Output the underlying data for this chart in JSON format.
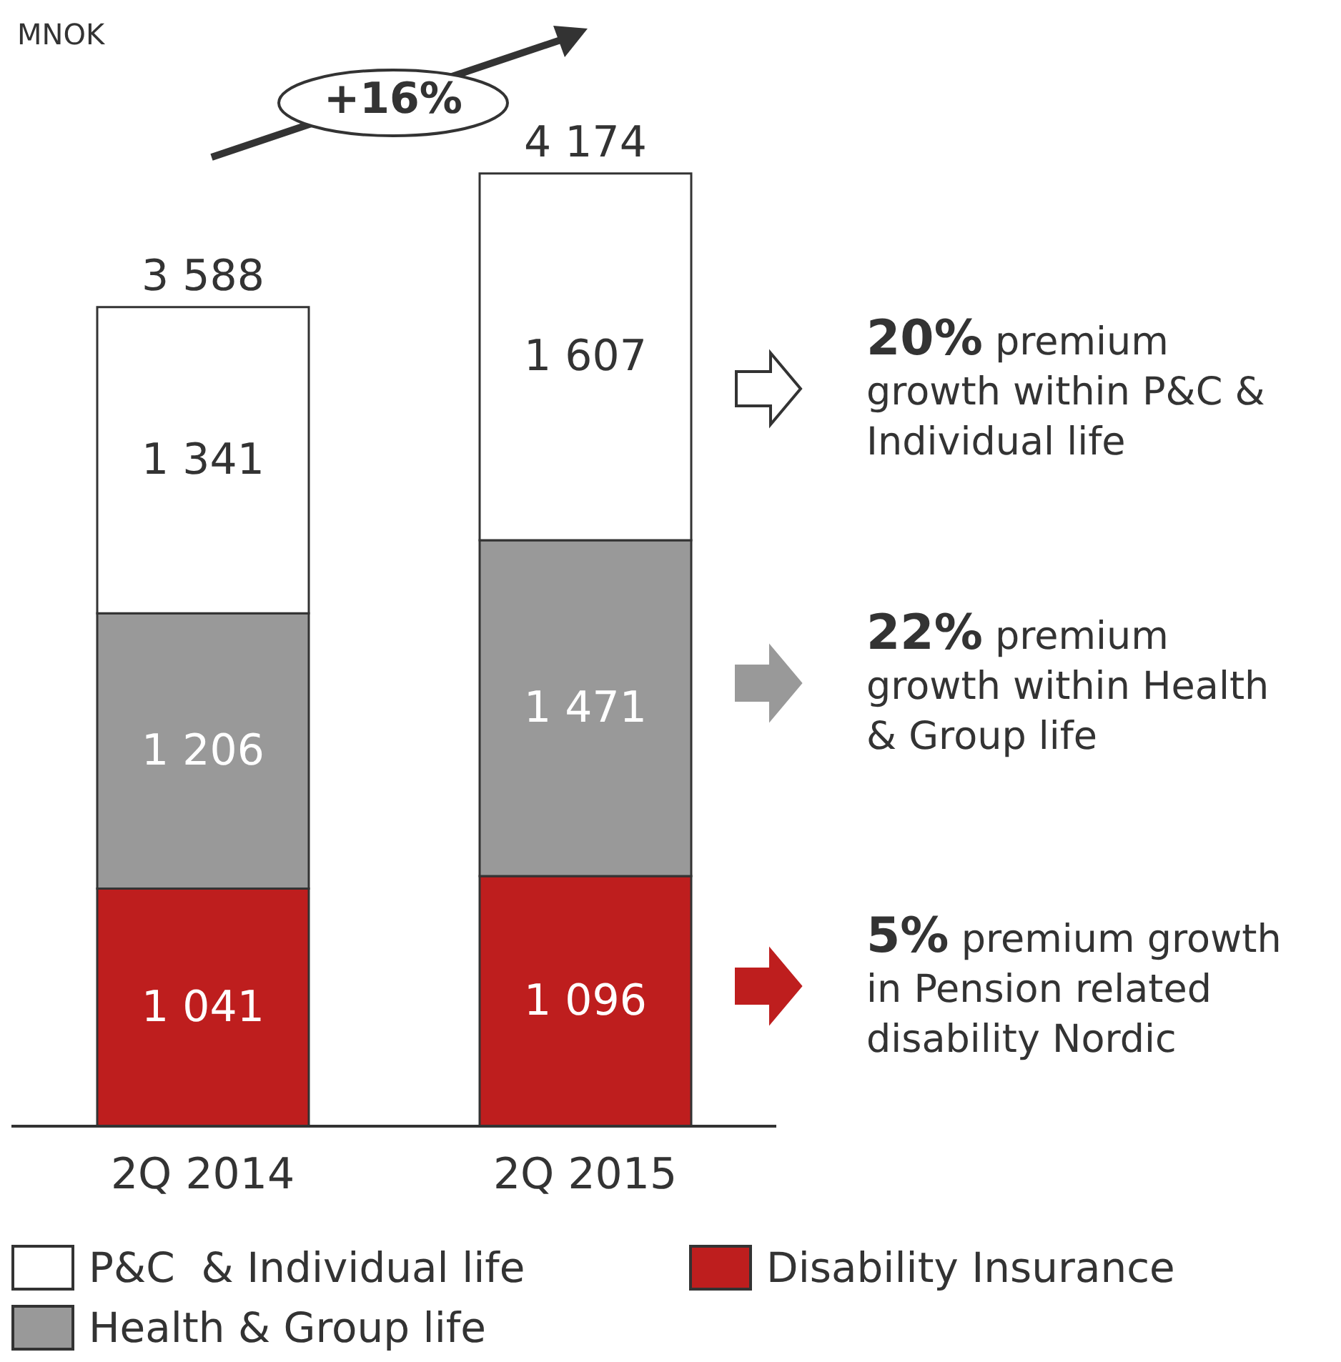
{
  "chart_data": {
    "type": "bar",
    "stacked": true,
    "categories": [
      "2Q 2014",
      "2Q 2015"
    ],
    "series": [
      {
        "name": "Disability Insurance",
        "color": "#be1e1e",
        "values": [
          1041,
          1096
        ],
        "value_labels": [
          "1 041",
          "1 096"
        ]
      },
      {
        "name": "Health & Group life",
        "color": "#999999",
        "values": [
          1206,
          1471
        ],
        "value_labels": [
          "1 206",
          "1 471"
        ]
      },
      {
        "name": "P&C  & Individual life",
        "color": "#ffffff",
        "values": [
          1341,
          1607
        ],
        "value_labels": [
          "1 341",
          "1 607"
        ]
      }
    ],
    "totals": [
      "3 588",
      "4 174"
    ],
    "legend": "bottom",
    "annotations": [
      "MNOK",
      "+16%",
      "20% premium growth within P&C & Individual life",
      "22% premium growth within Health & Group life",
      "5% premium growth in Pension related disability Nordic"
    ]
  }
}
